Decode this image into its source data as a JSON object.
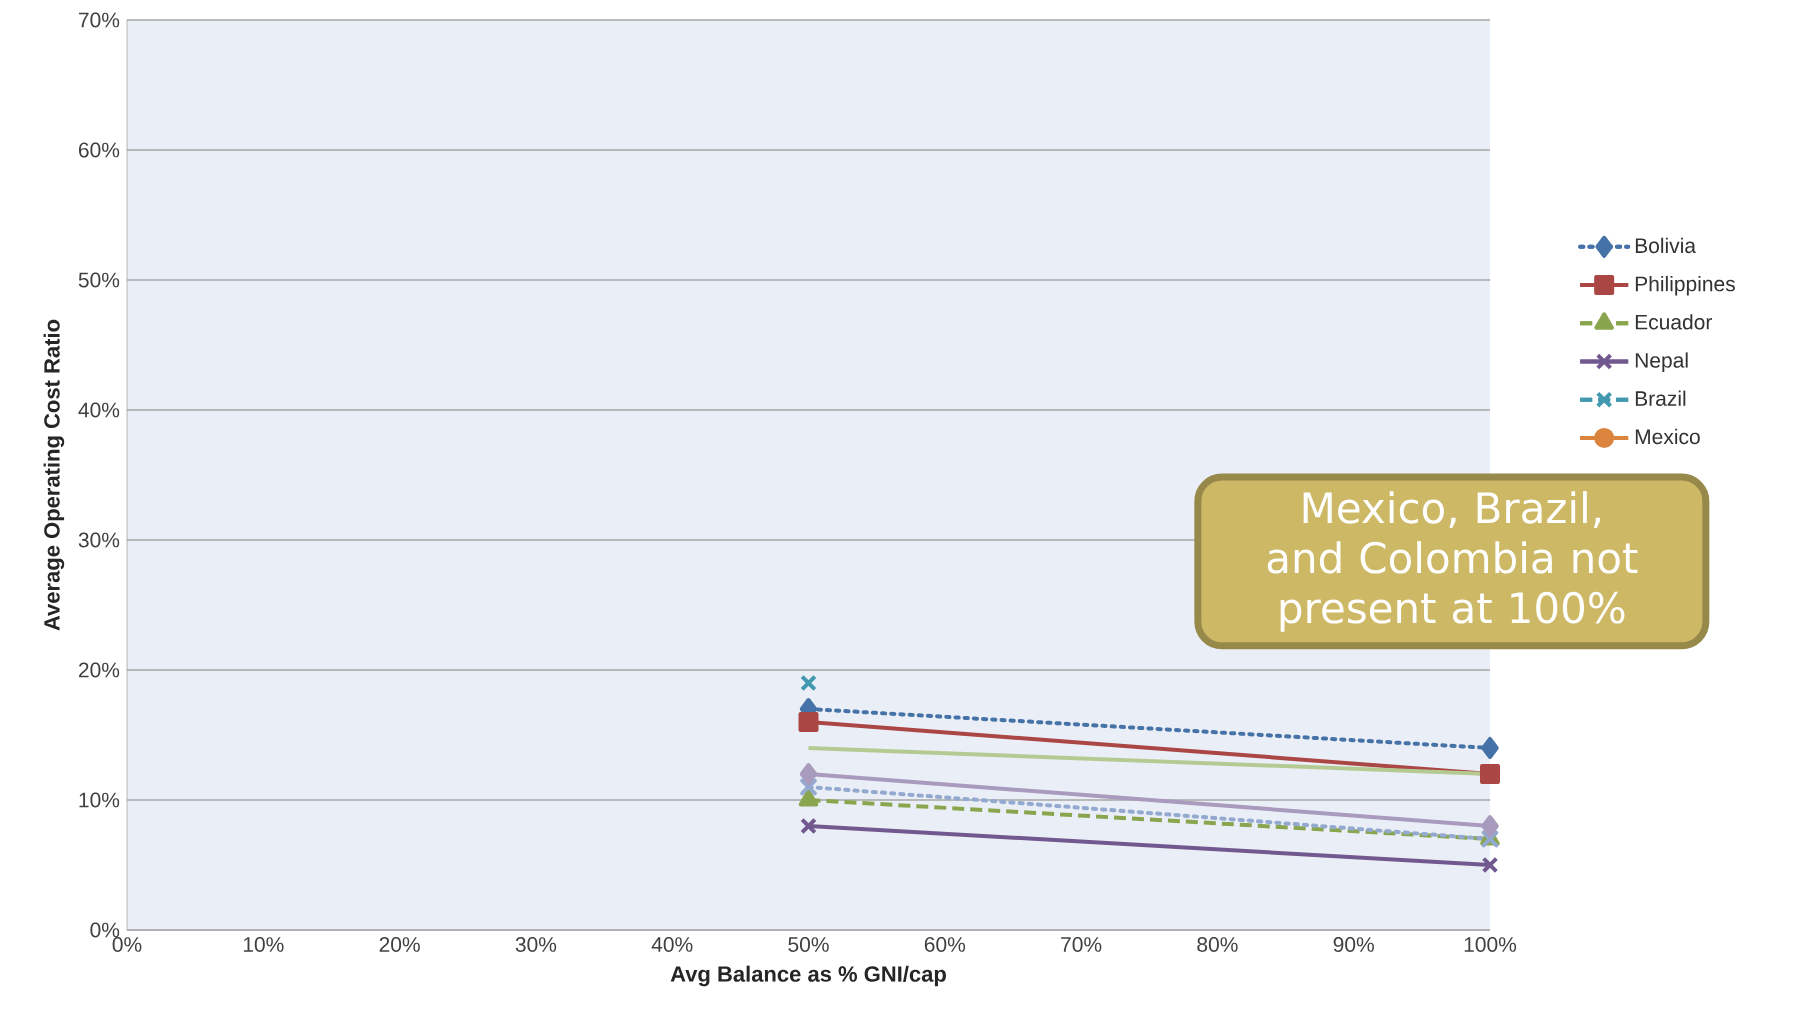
{
  "chart_data": {
    "type": "line",
    "xlabel": "Avg Balance as % GNI/cap",
    "ylabel": "Average Operating Cost Ratio",
    "x": [
      50,
      100
    ],
    "series": [
      {
        "name": "Bolivia",
        "color": "#4572a7",
        "values": [
          17,
          14
        ],
        "marker": "diamond",
        "line_style": "dotted"
      },
      {
        "name": "Philippines",
        "color": "#aa4643",
        "values": [
          16,
          12
        ],
        "marker": "square",
        "line_style": "solid"
      },
      {
        "name": "Ecuador",
        "color": "#89a54e",
        "values": [
          10,
          7
        ],
        "marker": "triangle",
        "line_style": "dashed"
      },
      {
        "name": "Nepal",
        "color": "#71588f",
        "values": [
          8,
          5
        ],
        "marker": "cross",
        "line_style": "solid"
      },
      {
        "name": "Brazil",
        "color": "#4198af",
        "values": [
          19,
          null
        ],
        "marker": "cross",
        "line_style": "dashed"
      },
      {
        "name": "Mexico",
        "color": "#db843d",
        "values": [
          null,
          null
        ],
        "marker": "circle",
        "line_style": "solid"
      },
      {
        "color": "#b5ca92",
        "values": [
          14,
          12
        ],
        "marker": "none",
        "line_style": "solid"
      },
      {
        "color": "#93a9cf",
        "values": [
          11,
          7
        ],
        "marker": "cross",
        "line_style": "dotted"
      },
      {
        "color": "#a99bbd",
        "values": [
          12,
          8
        ],
        "marker": "diamond",
        "line_style": "solid"
      }
    ],
    "xlim": [
      0,
      100
    ],
    "ylim": [
      0,
      70
    ],
    "xticks": [
      {
        "value": 0,
        "label": "0%"
      },
      {
        "value": 10,
        "label": "10%"
      },
      {
        "value": 20,
        "label": "20%"
      },
      {
        "value": 30,
        "label": "30%"
      },
      {
        "value": 40,
        "label": "40%"
      },
      {
        "value": 50,
        "label": "50%"
      },
      {
        "value": 60,
        "label": "60%"
      },
      {
        "value": 70,
        "label": "70%"
      },
      {
        "value": 80,
        "label": "80%"
      },
      {
        "value": 90,
        "label": "90%"
      },
      {
        "value": 100,
        "label": "100%"
      }
    ],
    "yticks": [
      {
        "value": 0,
        "label": "0%"
      },
      {
        "value": 10,
        "label": "10%"
      },
      {
        "value": 20,
        "label": "20%"
      },
      {
        "value": 30,
        "label": "30%"
      },
      {
        "value": 40,
        "label": "40%"
      },
      {
        "value": 50,
        "label": "50%"
      },
      {
        "value": 60,
        "label": "60%"
      },
      {
        "value": 70,
        "label": "70%"
      }
    ],
    "grid": "y",
    "legend": "right",
    "annotations": [
      "Mexico, Brazil, and Colombia not present at 100%"
    ]
  }
}
